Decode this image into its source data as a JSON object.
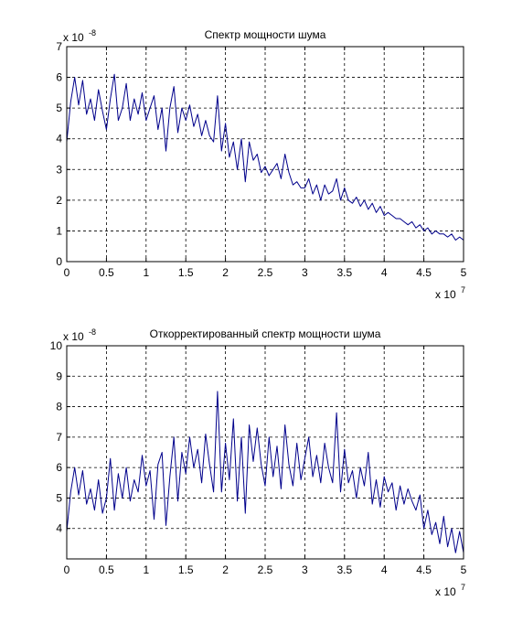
{
  "figure": {
    "background": "#ffffff",
    "axis_color": "#000000",
    "line_color": "#00008b"
  },
  "chart_data": [
    {
      "type": "line",
      "title": "Спектр мощности шума",
      "xlabel": "",
      "ylabel": "",
      "x_multiplier": "x 10",
      "x_exponent": "7",
      "y_multiplier": "x 10",
      "y_exponent": "-8",
      "xlim": [
        0,
        5
      ],
      "ylim": [
        0,
        7
      ],
      "xticks": [
        0,
        0.5,
        1,
        1.5,
        2,
        2.5,
        3,
        3.5,
        4,
        4.5,
        5
      ],
      "xtick_labels": [
        "0",
        "0.5",
        "1",
        "1.5",
        "2",
        "2.5",
        "3",
        "3.5",
        "4",
        "4.5",
        "5"
      ],
      "yticks": [
        0,
        1,
        2,
        3,
        4,
        5,
        6,
        7
      ],
      "ytick_labels": [
        "0",
        "1",
        "2",
        "3",
        "4",
        "5",
        "6",
        "7"
      ],
      "grid": true,
      "series": [
        {
          "x": [
            0,
            0.05,
            0.1,
            0.15,
            0.2,
            0.25,
            0.3,
            0.35,
            0.4,
            0.45,
            0.5,
            0.55,
            0.6,
            0.65,
            0.7,
            0.75,
            0.8,
            0.85,
            0.9,
            0.95,
            1.0,
            1.05,
            1.1,
            1.15,
            1.2,
            1.25,
            1.3,
            1.35,
            1.4,
            1.45,
            1.5,
            1.55,
            1.6,
            1.65,
            1.7,
            1.75,
            1.8,
            1.85,
            1.9,
            1.95,
            2.0,
            2.05,
            2.1,
            2.15,
            2.2,
            2.25,
            2.3,
            2.35,
            2.4,
            2.45,
            2.5,
            2.55,
            2.6,
            2.65,
            2.7,
            2.75,
            2.8,
            2.85,
            2.9,
            2.95,
            3.0,
            3.05,
            3.1,
            3.15,
            3.2,
            3.25,
            3.3,
            3.35,
            3.4,
            3.45,
            3.5,
            3.55,
            3.6,
            3.65,
            3.7,
            3.75,
            3.8,
            3.85,
            3.9,
            3.95,
            4.0,
            4.05,
            4.1,
            4.15,
            4.2,
            4.25,
            4.3,
            4.35,
            4.4,
            4.45,
            4.5,
            4.55,
            4.6,
            4.65,
            4.7,
            4.75,
            4.8,
            4.85,
            4.9,
            4.95,
            5.0
          ],
          "y": [
            3.9,
            5.2,
            6.0,
            5.1,
            5.9,
            4.8,
            5.3,
            4.6,
            5.6,
            4.9,
            4.3,
            5.3,
            6.1,
            4.6,
            5.0,
            5.8,
            4.6,
            5.3,
            4.8,
            5.5,
            4.6,
            5.0,
            5.4,
            4.3,
            5.0,
            3.6,
            5.0,
            5.7,
            4.2,
            5.0,
            4.6,
            5.1,
            4.4,
            4.8,
            4.1,
            4.6,
            4.1,
            3.9,
            5.4,
            3.6,
            4.5,
            3.4,
            3.9,
            3.0,
            4.0,
            2.6,
            3.9,
            3.3,
            3.5,
            2.9,
            3.1,
            2.8,
            3.0,
            3.2,
            2.7,
            3.5,
            2.9,
            2.5,
            2.6,
            2.4,
            2.4,
            2.7,
            2.2,
            2.5,
            2.0,
            2.5,
            2.2,
            2.3,
            2.7,
            2.0,
            2.4,
            2.0,
            1.9,
            2.1,
            1.8,
            2.0,
            1.7,
            1.9,
            1.6,
            1.8,
            1.5,
            1.6,
            1.5,
            1.4,
            1.4,
            1.3,
            1.2,
            1.3,
            1.1,
            1.2,
            1.0,
            1.1,
            0.9,
            1.0,
            0.9,
            0.9,
            0.8,
            0.9,
            0.7,
            0.8,
            0.7
          ]
        }
      ]
    },
    {
      "type": "line",
      "title": "Откорректированный спектр мощности шума",
      "xlabel": "",
      "ylabel": "",
      "x_multiplier": "x 10",
      "x_exponent": "7",
      "y_multiplier": "x 10",
      "y_exponent": "-8",
      "xlim": [
        0,
        5
      ],
      "ylim": [
        3,
        10
      ],
      "xticks": [
        0,
        0.5,
        1,
        1.5,
        2,
        2.5,
        3,
        3.5,
        4,
        4.5,
        5
      ],
      "xtick_labels": [
        "0",
        "0.5",
        "1",
        "1.5",
        "2",
        "2.5",
        "3",
        "3.5",
        "4",
        "4.5",
        "5"
      ],
      "yticks": [
        4,
        5,
        6,
        7,
        8,
        9,
        10
      ],
      "ytick_labels": [
        "4",
        "5",
        "6",
        "7",
        "8",
        "9",
        "10"
      ],
      "grid": true,
      "series": [
        {
          "x": [
            0,
            0.05,
            0.1,
            0.15,
            0.2,
            0.25,
            0.3,
            0.35,
            0.4,
            0.45,
            0.5,
            0.55,
            0.6,
            0.65,
            0.7,
            0.75,
            0.8,
            0.85,
            0.9,
            0.95,
            1.0,
            1.05,
            1.1,
            1.15,
            1.2,
            1.25,
            1.3,
            1.35,
            1.4,
            1.45,
            1.5,
            1.55,
            1.6,
            1.65,
            1.7,
            1.75,
            1.8,
            1.85,
            1.9,
            1.95,
            2.0,
            2.05,
            2.1,
            2.15,
            2.2,
            2.25,
            2.3,
            2.35,
            2.4,
            2.45,
            2.5,
            2.55,
            2.6,
            2.65,
            2.7,
            2.75,
            2.8,
            2.85,
            2.9,
            2.95,
            3.0,
            3.05,
            3.1,
            3.15,
            3.2,
            3.25,
            3.3,
            3.35,
            3.4,
            3.45,
            3.5,
            3.55,
            3.6,
            3.65,
            3.7,
            3.75,
            3.8,
            3.85,
            3.9,
            3.95,
            4.0,
            4.05,
            4.1,
            4.15,
            4.2,
            4.25,
            4.3,
            4.35,
            4.4,
            4.45,
            4.5,
            4.55,
            4.6,
            4.65,
            4.7,
            4.75,
            4.8,
            4.85,
            4.9,
            4.95,
            5.0
          ],
          "y": [
            3.9,
            5.2,
            6.0,
            5.1,
            5.9,
            4.8,
            5.3,
            4.6,
            5.6,
            4.5,
            5.0,
            6.3,
            4.6,
            5.8,
            5.0,
            6.0,
            4.9,
            5.6,
            5.2,
            6.4,
            5.4,
            5.9,
            4.3,
            6.1,
            6.5,
            4.1,
            5.7,
            7.0,
            4.9,
            6.5,
            5.8,
            7.0,
            6.0,
            6.6,
            5.5,
            7.1,
            6.1,
            5.2,
            8.5,
            5.2,
            6.8,
            5.6,
            7.6,
            4.9,
            7.0,
            4.5,
            7.4,
            6.2,
            7.3,
            6.1,
            5.4,
            7.0,
            5.7,
            6.7,
            5.3,
            7.4,
            6.1,
            5.4,
            6.8,
            5.6,
            6.3,
            7.0,
            5.7,
            6.4,
            5.5,
            6.8,
            6.0,
            5.5,
            7.8,
            5.2,
            6.6,
            5.5,
            5.9,
            5.0,
            6.0,
            5.4,
            6.5,
            4.8,
            5.6,
            4.7,
            5.7,
            5.2,
            5.5,
            4.6,
            5.4,
            4.8,
            5.3,
            4.9,
            4.6,
            5.1,
            4.0,
            4.6,
            3.8,
            4.2,
            3.5,
            4.4,
            3.4,
            4.0,
            3.2,
            3.9,
            3.2
          ]
        }
      ]
    }
  ]
}
